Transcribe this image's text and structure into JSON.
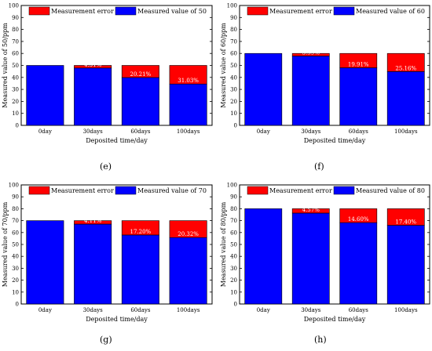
{
  "figure": {
    "panels": [
      {
        "label": "(e)"
      },
      {
        "label": "(f)"
      },
      {
        "label": "(g)"
      },
      {
        "label": "(h)"
      }
    ]
  },
  "colors": {
    "measured": "#0000ff",
    "error": "#ff0000",
    "axis": "#000000"
  },
  "chart_data": [
    {
      "type": "bar",
      "panel": "(e)",
      "categories": [
        "0day",
        "30days",
        "60days",
        "100days"
      ],
      "xlabel": "Deposited time/day",
      "ylabel": "Measured value of 50/ppm",
      "ylim": [
        0,
        100
      ],
      "yticks": [
        0,
        10,
        20,
        30,
        40,
        50,
        60,
        70,
        80,
        90,
        100
      ],
      "legend_position": "top",
      "series": [
        {
          "name": "Measured value of 50",
          "values": [
            50,
            47.85,
            39.9,
            34.5
          ]
        },
        {
          "name": "Measurement error",
          "values": [
            0,
            2.15,
            10.1,
            15.5
          ]
        }
      ],
      "annotations": [
        "",
        "4.31%",
        "20.21%",
        "31.03%"
      ]
    },
    {
      "type": "bar",
      "panel": "(f)",
      "categories": [
        "0day",
        "30days",
        "60days",
        "100days"
      ],
      "xlabel": "Deposited time/day",
      "ylabel": "Measured value of 60/ppm",
      "ylim": [
        0,
        100
      ],
      "yticks": [
        0,
        10,
        20,
        30,
        40,
        50,
        60,
        70,
        80,
        90,
        100
      ],
      "legend_position": "top",
      "series": [
        {
          "name": "Measured value of 60",
          "values": [
            60,
            57.85,
            48.05,
            44.9
          ]
        },
        {
          "name": "Measurement error",
          "values": [
            0,
            2.15,
            11.95,
            15.1
          ]
        }
      ],
      "annotations": [
        "",
        "3.59%",
        "19.91%",
        "25.16%"
      ]
    },
    {
      "type": "bar",
      "panel": "(g)",
      "categories": [
        "0day",
        "30days",
        "60days",
        "100days"
      ],
      "xlabel": "Deposited time/day",
      "ylabel": "Measured value of 70/ppm",
      "ylim": [
        0,
        100
      ],
      "yticks": [
        0,
        10,
        20,
        30,
        40,
        50,
        60,
        70,
        80,
        90,
        100
      ],
      "legend_position": "top",
      "series": [
        {
          "name": "Measured value of 70",
          "values": [
            70,
            67.1,
            57.95,
            55.8
          ]
        },
        {
          "name": "Measurement error",
          "values": [
            0,
            2.9,
            12.05,
            14.2
          ]
        }
      ],
      "annotations": [
        "",
        "4.11%",
        "17.20%",
        "20.32%"
      ]
    },
    {
      "type": "bar",
      "panel": "(h)",
      "categories": [
        "0day",
        "30days",
        "60days",
        "100days"
      ],
      "xlabel": "Deposited time/day",
      "ylabel": "Measured value of 80/ppm",
      "ylim": [
        0,
        100
      ],
      "yticks": [
        0,
        10,
        20,
        30,
        40,
        50,
        60,
        70,
        80,
        90,
        100
      ],
      "legend_position": "top",
      "series": [
        {
          "name": "Measured value of 80",
          "values": [
            80,
            76.35,
            68.3,
            66.1
          ]
        },
        {
          "name": "Measurement error",
          "values": [
            0,
            3.65,
            11.7,
            13.9
          ]
        }
      ],
      "annotations": [
        "",
        "4.57%",
        "14.60%",
        "17.40%"
      ]
    }
  ]
}
